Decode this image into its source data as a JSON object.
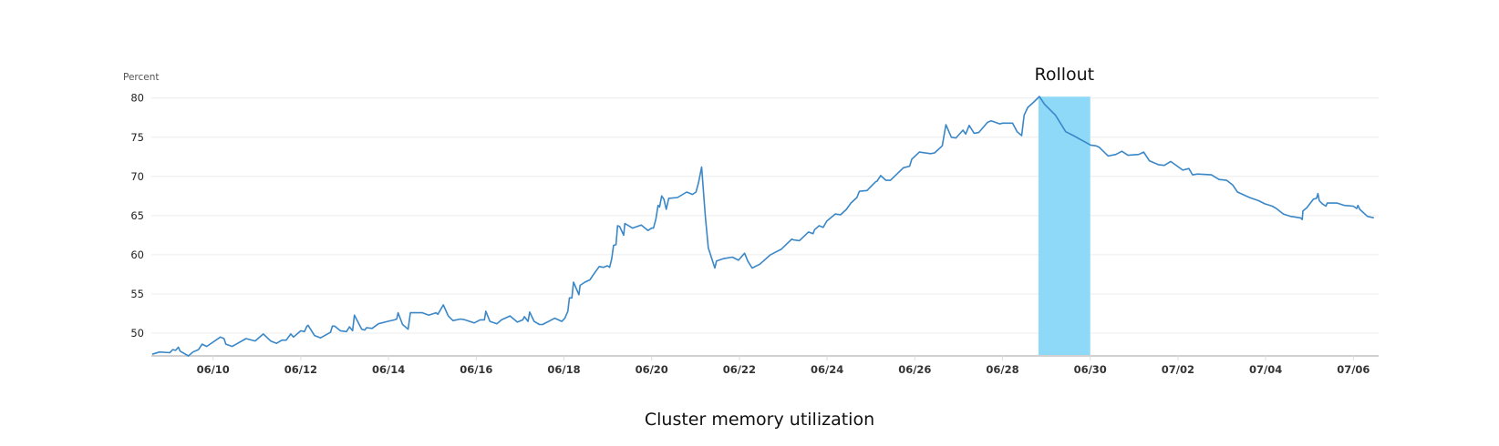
{
  "chart_data": {
    "type": "line",
    "title": "Cluster memory utilization",
    "ylabel": "Percent",
    "xlabel": "",
    "ylim": [
      47.1,
      80
    ],
    "xlim": [
      "06/08 14:40",
      "07/06 11:15"
    ],
    "yticks": [
      50,
      55,
      60,
      65,
      70,
      75,
      80
    ],
    "xticks": [
      "06/10",
      "06/12",
      "06/14",
      "06/16",
      "06/18",
      "06/20",
      "06/22",
      "06/24",
      "06/26",
      "06/28",
      "06/30",
      "07/02",
      "07/04",
      "07/06"
    ],
    "grid": true,
    "legend": "none",
    "line_color": "#3a87c8",
    "annotations": [
      {
        "label": "Rollout",
        "type": "band",
        "start": "06/28 19:40",
        "end": "06/30 00:00",
        "color": "#8ed8f8"
      }
    ],
    "points": [
      [
        "06/08 14:40",
        47.3
      ],
      [
        "06/08 18:45",
        47.6
      ],
      [
        "06/09 00:15",
        47.5
      ],
      [
        "06/09 02:00",
        47.9
      ],
      [
        "06/09 03:30",
        47.8
      ],
      [
        "06/09 05:00",
        48.2
      ],
      [
        "06/09 06:00",
        47.7
      ],
      [
        "06/09 10:30",
        47.1
      ],
      [
        "06/09 13:00",
        47.6
      ],
      [
        "06/09 16:00",
        47.9
      ],
      [
        "06/09 18:00",
        48.6
      ],
      [
        "06/09 20:30",
        48.3
      ],
      [
        "06/10 04:00",
        49.5
      ],
      [
        "06/10 06:00",
        49.3
      ],
      [
        "06/10 07:00",
        48.6
      ],
      [
        "06/10 10:30",
        48.3
      ],
      [
        "06/10 18:00",
        49.3
      ],
      [
        "06/10 23:00",
        49.0
      ],
      [
        "06/11 03:30",
        49.9
      ],
      [
        "06/11 07:30",
        49.0
      ],
      [
        "06/11 10:45",
        48.7
      ],
      [
        "06/11 13:40",
        49.1
      ],
      [
        "06/11 16:00",
        49.1
      ],
      [
        "06/11 18:30",
        49.9
      ],
      [
        "06/11 20:00",
        49.5
      ],
      [
        "06/12 00:00",
        50.3
      ],
      [
        "06/12 02:00",
        50.2
      ],
      [
        "06/12 03:20",
        50.9
      ],
      [
        "06/12 04:00",
        51.0
      ],
      [
        "06/12 07:30",
        49.7
      ],
      [
        "06/12 10:50",
        49.4
      ],
      [
        "06/12 16:15",
        50.1
      ],
      [
        "06/12 17:15",
        50.9
      ],
      [
        "06/12 18:30",
        50.9
      ],
      [
        "06/12 21:40",
        50.3
      ],
      [
        "06/13 01:00",
        50.2
      ],
      [
        "06/13 02:40",
        50.8
      ],
      [
        "06/13 04:20",
        50.3
      ],
      [
        "06/13 05:20",
        52.3
      ],
      [
        "06/13 09:20",
        50.5
      ],
      [
        "06/13 11:00",
        50.4
      ],
      [
        "06/13 12:00",
        50.7
      ],
      [
        "06/13 15:00",
        50.6
      ],
      [
        "06/13 18:30",
        51.2
      ],
      [
        "06/13 23:30",
        51.5
      ],
      [
        "06/14 03:20",
        51.7
      ],
      [
        "06/14 04:30",
        51.8
      ],
      [
        "06/14 05:15",
        52.6
      ],
      [
        "06/14 07:40",
        51.1
      ],
      [
        "06/14 10:45",
        50.5
      ],
      [
        "06/14 12:00",
        52.6
      ],
      [
        "06/14 18:30",
        52.6
      ],
      [
        "06/14 22:00",
        52.3
      ],
      [
        "06/15 02:00",
        52.6
      ],
      [
        "06/15 03:00",
        52.4
      ],
      [
        "06/15 06:00",
        53.6
      ],
      [
        "06/15 08:40",
        52.2
      ],
      [
        "06/15 11:15",
        51.6
      ],
      [
        "06/15 15:30",
        51.8
      ],
      [
        "06/15 17:50",
        51.7
      ],
      [
        "06/15 22:50",
        51.3
      ],
      [
        "06/16 02:10",
        51.7
      ],
      [
        "06/16 04:30",
        51.7
      ],
      [
        "06/16 05:15",
        52.8
      ],
      [
        "06/16 07:30",
        51.5
      ],
      [
        "06/16 11:20",
        51.2
      ],
      [
        "06/16 13:50",
        51.7
      ],
      [
        "06/16 18:30",
        52.2
      ],
      [
        "06/16 22:30",
        51.4
      ],
      [
        "06/17 01:30",
        51.7
      ],
      [
        "06/17 02:20",
        52.1
      ],
      [
        "06/17 04:20",
        51.5
      ],
      [
        "06/17 05:15",
        52.7
      ],
      [
        "06/17 07:40",
        51.5
      ],
      [
        "06/17 10:35",
        51.1
      ],
      [
        "06/17 12:20",
        51.1
      ],
      [
        "06/17 19:00",
        51.9
      ],
      [
        "06/17 22:50",
        51.5
      ],
      [
        "06/18 00:30",
        51.9
      ],
      [
        "06/18 02:10",
        52.8
      ],
      [
        "06/18 03:00",
        54.5
      ],
      [
        "06/18 04:20",
        54.5
      ],
      [
        "06/18 05:15",
        56.5
      ],
      [
        "06/18 08:10",
        54.9
      ],
      [
        "06/18 08:50",
        56.1
      ],
      [
        "06/18 11:30",
        56.5
      ],
      [
        "06/18 14:10",
        56.8
      ],
      [
        "06/18 16:30",
        57.6
      ],
      [
        "06/18 19:20",
        58.5
      ],
      [
        "06/18 21:30",
        58.4
      ],
      [
        "06/18 23:45",
        58.6
      ],
      [
        "06/19 01:00",
        58.4
      ],
      [
        "06/19 02:10",
        59.5
      ],
      [
        "06/19 03:10",
        61.2
      ],
      [
        "06/19 04:30",
        61.3
      ],
      [
        "06/19 05:20",
        63.7
      ],
      [
        "06/19 06:30",
        63.6
      ],
      [
        "06/19 08:40",
        62.5
      ],
      [
        "06/19 09:20",
        64.0
      ],
      [
        "06/19 13:30",
        63.4
      ],
      [
        "06/19 18:20",
        63.8
      ],
      [
        "06/19 22:00",
        63.1
      ],
      [
        "06/20 00:00",
        63.4
      ],
      [
        "06/20 01:00",
        63.4
      ],
      [
        "06/20 02:20",
        64.6
      ],
      [
        "06/20 03:30",
        66.3
      ],
      [
        "06/20 04:20",
        66.1
      ],
      [
        "06/20 05:30",
        67.5
      ],
      [
        "06/20 06:40",
        67.1
      ],
      [
        "06/20 08:00",
        65.8
      ],
      [
        "06/20 09:20",
        67.2
      ],
      [
        "06/20 14:10",
        67.3
      ],
      [
        "06/20 19:10",
        68.0
      ],
      [
        "06/20 22:20",
        67.7
      ],
      [
        "06/21 00:15",
        68.0
      ],
      [
        "06/21 01:40",
        69.2
      ],
      [
        "06/21 03:20",
        71.2
      ],
      [
        "06/21 05:20",
        65.0
      ],
      [
        "06/21 07:00",
        60.9
      ],
      [
        "06/21 10:35",
        58.3
      ],
      [
        "06/21 11:30",
        59.2
      ],
      [
        "06/21 15:10",
        59.5
      ],
      [
        "06/21 20:10",
        59.7
      ],
      [
        "06/21 23:30",
        59.3
      ],
      [
        "06/22 02:50",
        60.2
      ],
      [
        "06/22 04:35",
        59.2
      ],
      [
        "06/22 07:00",
        58.3
      ],
      [
        "06/22 11:15",
        58.8
      ],
      [
        "06/22 17:00",
        60.0
      ],
      [
        "06/22 19:30",
        60.3
      ],
      [
        "06/22 22:50",
        60.7
      ],
      [
        "06/23 04:40",
        62.0
      ],
      [
        "06/23 05:30",
        61.9
      ],
      [
        "06/23 08:50",
        61.8
      ],
      [
        "06/23 13:50",
        62.9
      ],
      [
        "06/23 16:20",
        62.7
      ],
      [
        "06/23 17:10",
        63.2
      ],
      [
        "06/23 19:40",
        63.7
      ],
      [
        "06/23 21:50",
        63.5
      ],
      [
        "06/23 23:50",
        64.3
      ],
      [
        "06/24 04:30",
        65.2
      ],
      [
        "06/24 07:20",
        65.1
      ],
      [
        "06/24 10:35",
        65.8
      ],
      [
        "06/24 13:00",
        66.6
      ],
      [
        "06/24 16:20",
        67.3
      ],
      [
        "06/24 17:40",
        68.1
      ],
      [
        "06/24 21:50",
        68.2
      ],
      [
        "06/25 02:30",
        69.3
      ],
      [
        "06/25 03:20",
        69.4
      ],
      [
        "06/25 05:20",
        70.1
      ],
      [
        "06/25 08:10",
        69.5
      ],
      [
        "06/25 10:40",
        69.5
      ],
      [
        "06/25 17:45",
        71.1
      ],
      [
        "06/25 21:10",
        71.3
      ],
      [
        "06/25 22:20",
        72.2
      ],
      [
        "06/26 02:30",
        73.1
      ],
      [
        "06/26 08:40",
        72.9
      ],
      [
        "06/26 10:50",
        73.0
      ],
      [
        "06/26 15:00",
        73.9
      ],
      [
        "06/26 17:00",
        76.6
      ],
      [
        "06/26 20:00",
        75.0
      ],
      [
        "06/26 22:30",
        74.9
      ],
      [
        "06/27 02:20",
        75.9
      ],
      [
        "06/27 03:50",
        75.4
      ],
      [
        "06/27 05:45",
        76.5
      ],
      [
        "06/27 08:30",
        75.5
      ],
      [
        "06/27 11:00",
        75.6
      ],
      [
        "06/27 15:50",
        76.9
      ],
      [
        "06/27 17:50",
        77.1
      ],
      [
        "06/27 22:30",
        76.7
      ],
      [
        "06/28 00:00",
        76.8
      ],
      [
        "06/28 05:30",
        76.8
      ],
      [
        "06/28 08:00",
        75.7
      ],
      [
        "06/28 10:30",
        75.2
      ],
      [
        "06/28 11:50",
        77.8
      ],
      [
        "06/28 13:50",
        78.8
      ],
      [
        "06/28 17:10",
        79.5
      ],
      [
        "06/28 20:10",
        80.2
      ],
      [
        "06/28 23:00",
        79.2
      ],
      [
        "06/29 05:00",
        77.8
      ],
      [
        "06/29 10:35",
        75.7
      ],
      [
        "06/29 14:50",
        75.2
      ],
      [
        "06/30 00:15",
        74.0
      ],
      [
        "06/30 03:10",
        73.9
      ],
      [
        "06/30 05:00",
        73.7
      ],
      [
        "06/30 09:50",
        72.6
      ],
      [
        "06/30 14:00",
        72.8
      ],
      [
        "06/30 17:20",
        73.2
      ],
      [
        "06/30 20:40",
        72.7
      ],
      [
        "07/01 02:30",
        72.8
      ],
      [
        "07/01 05:15",
        73.1
      ],
      [
        "07/01 08:20",
        72.0
      ],
      [
        "07/01 13:15",
        71.5
      ],
      [
        "07/01 16:30",
        71.4
      ],
      [
        "07/01 20:00",
        71.9
      ],
      [
        "07/02 02:40",
        70.8
      ],
      [
        "07/02 06:00",
        71.0
      ],
      [
        "07/02 08:00",
        70.2
      ],
      [
        "07/02 10:50",
        70.3
      ],
      [
        "07/02 18:20",
        70.2
      ],
      [
        "07/02 22:30",
        69.6
      ],
      [
        "07/03 02:40",
        69.5
      ],
      [
        "07/03 06:00",
        68.9
      ],
      [
        "07/03 08:35",
        68.0
      ],
      [
        "07/03 15:10",
        67.3
      ],
      [
        "07/03 20:10",
        66.9
      ],
      [
        "07/03 23:30",
        66.5
      ],
      [
        "07/04 03:40",
        66.2
      ],
      [
        "07/04 05:50",
        65.9
      ],
      [
        "07/04 09:40",
        65.2
      ],
      [
        "07/04 13:40",
        64.9
      ],
      [
        "07/04 19:10",
        64.7
      ],
      [
        "07/04 20:00",
        64.5
      ],
      [
        "07/04 20:25",
        65.6
      ],
      [
        "07/04 22:30",
        66.0
      ],
      [
        "07/05 02:10",
        67.1
      ],
      [
        "07/05 03:50",
        67.2
      ],
      [
        "07/05 04:35",
        67.8
      ],
      [
        "07/05 05:20",
        66.9
      ],
      [
        "07/05 07:00",
        66.5
      ],
      [
        "07/05 09:00",
        66.2
      ],
      [
        "07/05 09:40",
        66.6
      ],
      [
        "07/05 15:10",
        66.6
      ],
      [
        "07/05 19:10",
        66.3
      ],
      [
        "07/06 00:00",
        66.2
      ],
      [
        "07/06 01:50",
        65.9
      ],
      [
        "07/06 02:30",
        66.3
      ],
      [
        "07/06 03:30",
        65.8
      ],
      [
        "07/06 07:40",
        64.9
      ],
      [
        "07/06 11:15",
        64.7
      ]
    ]
  }
}
